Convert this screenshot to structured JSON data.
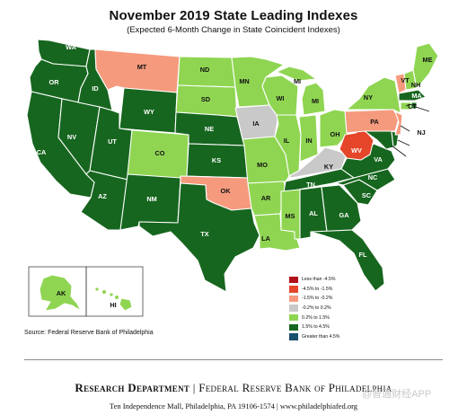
{
  "title": "November 2019 State Leading Indexes",
  "subtitle": "(Expected 6-Month Change in State Coincident Indexes)",
  "colors": {
    "less_than_-4.5": "#b0101a",
    "-4.5_to_-1.5": "#e5462a",
    "-1.5_to_-0.2": "#f59a7d",
    "-0.2_to_0.2": "#c9c9c9",
    "0.2_to_1.5": "#8fd552",
    "1.5_to_4.5": "#17661f",
    "greater_than_4.5": "#1b4f6e"
  },
  "legend": [
    {
      "label": "Less than -4.5%",
      "color": "#b0101a"
    },
    {
      "label": "-4.5% to -1.5%",
      "color": "#e5462a"
    },
    {
      "label": "-1.5% to -0.2%",
      "color": "#f59a7d"
    },
    {
      "label": "-0.2% to 0.2%",
      "color": "#c9c9c9"
    },
    {
      "label": "0.2% to 1.5%",
      "color": "#8fd552"
    },
    {
      "label": "1.5% to 4.5%",
      "color": "#17661f"
    },
    {
      "label": "Greater than 4.5%",
      "color": "#1b4f6e"
    }
  ],
  "states": [
    {
      "abbr": "WA",
      "category": "1.5% to 4.5%"
    },
    {
      "abbr": "OR",
      "category": "1.5% to 4.5%"
    },
    {
      "abbr": "CA",
      "category": "1.5% to 4.5%"
    },
    {
      "abbr": "NV",
      "category": "1.5% to 4.5%"
    },
    {
      "abbr": "ID",
      "category": "1.5% to 4.5%"
    },
    {
      "abbr": "MT",
      "category": "-1.5% to -0.2%"
    },
    {
      "abbr": "WY",
      "category": "1.5% to 4.5%"
    },
    {
      "abbr": "UT",
      "category": "1.5% to 4.5%"
    },
    {
      "abbr": "AZ",
      "category": "1.5% to 4.5%"
    },
    {
      "abbr": "CO",
      "category": "0.2% to 1.5%"
    },
    {
      "abbr": "NM",
      "category": "1.5% to 4.5%"
    },
    {
      "abbr": "ND",
      "category": "0.2% to 1.5%"
    },
    {
      "abbr": "SD",
      "category": "0.2% to 1.5%"
    },
    {
      "abbr": "NE",
      "category": "1.5% to 4.5%"
    },
    {
      "abbr": "KS",
      "category": "1.5% to 4.5%"
    },
    {
      "abbr": "OK",
      "category": "-1.5% to -0.2%"
    },
    {
      "abbr": "TX",
      "category": "1.5% to 4.5%"
    },
    {
      "abbr": "MN",
      "category": "0.2% to 1.5%"
    },
    {
      "abbr": "IA",
      "category": "-0.2% to 0.2%"
    },
    {
      "abbr": "MO",
      "category": "0.2% to 1.5%"
    },
    {
      "abbr": "AR",
      "category": "0.2% to 1.5%"
    },
    {
      "abbr": "LA",
      "category": "0.2% to 1.5%"
    },
    {
      "abbr": "WI",
      "category": "0.2% to 1.5%"
    },
    {
      "abbr": "IL",
      "category": "0.2% to 1.5%"
    },
    {
      "abbr": "MI",
      "category": "0.2% to 1.5%"
    },
    {
      "abbr": "IN",
      "category": "0.2% to 1.5%"
    },
    {
      "abbr": "OH",
      "category": "0.2% to 1.5%"
    },
    {
      "abbr": "KY",
      "category": "-0.2% to 0.2%"
    },
    {
      "abbr": "TN",
      "category": "1.5% to 4.5%"
    },
    {
      "abbr": "MS",
      "category": "0.2% to 1.5%"
    },
    {
      "abbr": "AL",
      "category": "1.5% to 4.5%"
    },
    {
      "abbr": "GA",
      "category": "1.5% to 4.5%"
    },
    {
      "abbr": "FL",
      "category": "1.5% to 4.5%"
    },
    {
      "abbr": "SC",
      "category": "1.5% to 4.5%"
    },
    {
      "abbr": "NC",
      "category": "1.5% to 4.5%"
    },
    {
      "abbr": "VA",
      "category": "1.5% to 4.5%"
    },
    {
      "abbr": "WV",
      "category": "-4.5% to -1.5%"
    },
    {
      "abbr": "PA",
      "category": "-1.5% to -0.2%"
    },
    {
      "abbr": "NY",
      "category": "0.2% to 1.5%"
    },
    {
      "abbr": "VT",
      "category": "-1.5% to -0.2%"
    },
    {
      "abbr": "NH",
      "category": "0.2% to 1.5%"
    },
    {
      "abbr": "ME",
      "category": "0.2% to 1.5%"
    },
    {
      "abbr": "MA",
      "category": "1.5% to 4.5%"
    },
    {
      "abbr": "CT",
      "category": "0.2% to 1.5%"
    },
    {
      "abbr": "RI",
      "category": "1.5% to 4.5%"
    },
    {
      "abbr": "NJ",
      "category": "-1.5% to -0.2%"
    },
    {
      "abbr": "DE",
      "category": "1.5% to 4.5%"
    },
    {
      "abbr": "MD",
      "category": "1.5% to 4.5%"
    },
    {
      "abbr": "AK",
      "category": "0.2% to 1.5%"
    },
    {
      "abbr": "HI",
      "category": "0.2% to 1.5%"
    }
  ],
  "source": "Source: Federal Reserve Bank of Philadelphia",
  "footer": {
    "department": "Research Department",
    "bank": "Federal Reserve Bank of Philadelphia",
    "address": "Ten Independence Mall, Philadelphia, PA 19106-1574 | www.philadelphiafed.org"
  },
  "watermark": "@智通财经APP"
}
